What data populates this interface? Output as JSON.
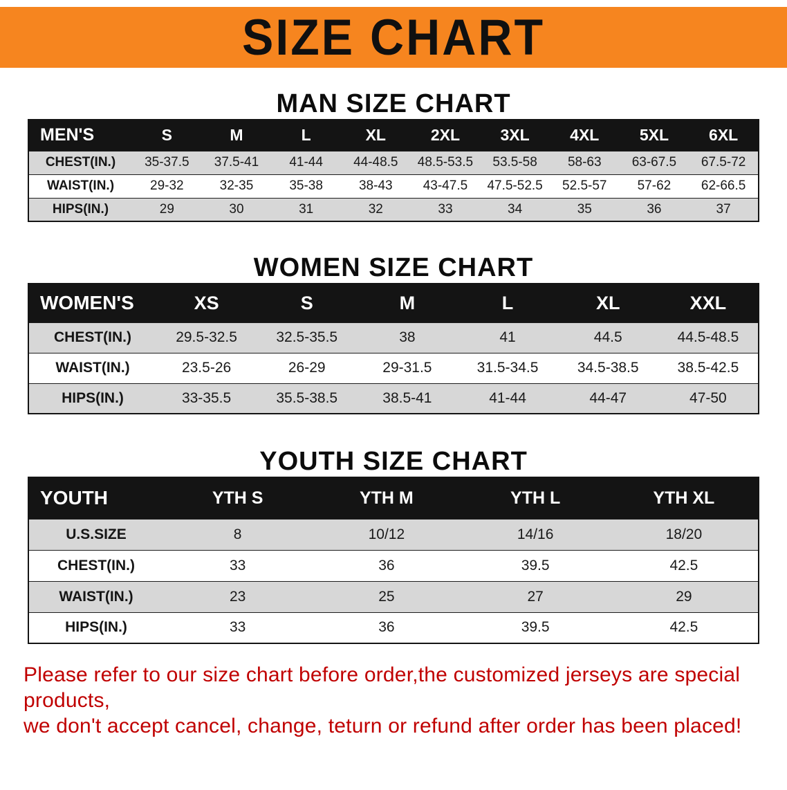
{
  "banner": {
    "title": "SIZE CHART"
  },
  "colors": {
    "banner_bg": "#f6851f",
    "table_header_bg": "#141414",
    "row_alt_gray": "#d7d7d7",
    "note_red": "#c00000"
  },
  "men": {
    "heading": "MAN SIZE CHART",
    "header": [
      "MEN'S",
      "S",
      "M",
      "L",
      "XL",
      "2XL",
      "3XL",
      "4XL",
      "5XL",
      "6XL"
    ],
    "rows": [
      [
        "CHEST(IN.)",
        "35-37.5",
        "37.5-41",
        "41-44",
        "44-48.5",
        "48.5-53.5",
        "53.5-58",
        "58-63",
        "63-67.5",
        "67.5-72"
      ],
      [
        "WAIST(IN.)",
        "29-32",
        "32-35",
        "35-38",
        "38-43",
        "43-47.5",
        "47.5-52.5",
        "52.5-57",
        "57-62",
        "62-66.5"
      ],
      [
        "HIPS(IN.)",
        "29",
        "30",
        "31",
        "32",
        "33",
        "34",
        "35",
        "36",
        "37"
      ]
    ]
  },
  "women": {
    "heading": "WOMEN SIZE CHART",
    "header": [
      "WOMEN'S",
      "XS",
      "S",
      "M",
      "L",
      "XL",
      "XXL"
    ],
    "rows": [
      [
        "CHEST(IN.)",
        "29.5-32.5",
        "32.5-35.5",
        "38",
        "41",
        "44.5",
        "44.5-48.5"
      ],
      [
        "WAIST(IN.)",
        "23.5-26",
        "26-29",
        "29-31.5",
        "31.5-34.5",
        "34.5-38.5",
        "38.5-42.5"
      ],
      [
        "HIPS(IN.)",
        "33-35.5",
        "35.5-38.5",
        "38.5-41",
        "41-44",
        "44-47",
        "47-50"
      ]
    ]
  },
  "youth": {
    "heading": "YOUTH SIZE CHART",
    "header": [
      "YOUTH",
      "YTH S",
      "YTH M",
      "YTH L",
      "YTH XL"
    ],
    "rows": [
      [
        "U.S.SIZE",
        "8",
        "10/12",
        "14/16",
        "18/20"
      ],
      [
        "CHEST(IN.)",
        "33",
        "36",
        "39.5",
        "42.5"
      ],
      [
        "WAIST(IN.)",
        "23",
        "25",
        "27",
        "29"
      ],
      [
        "HIPS(IN.)",
        "33",
        "36",
        "39.5",
        "42.5"
      ]
    ]
  },
  "note": {
    "line1": "Please refer to our size chart before order,the customized jerseys are special products,",
    "line2": "we don't accept cancel, change, teturn or refund after order has been placed!"
  }
}
